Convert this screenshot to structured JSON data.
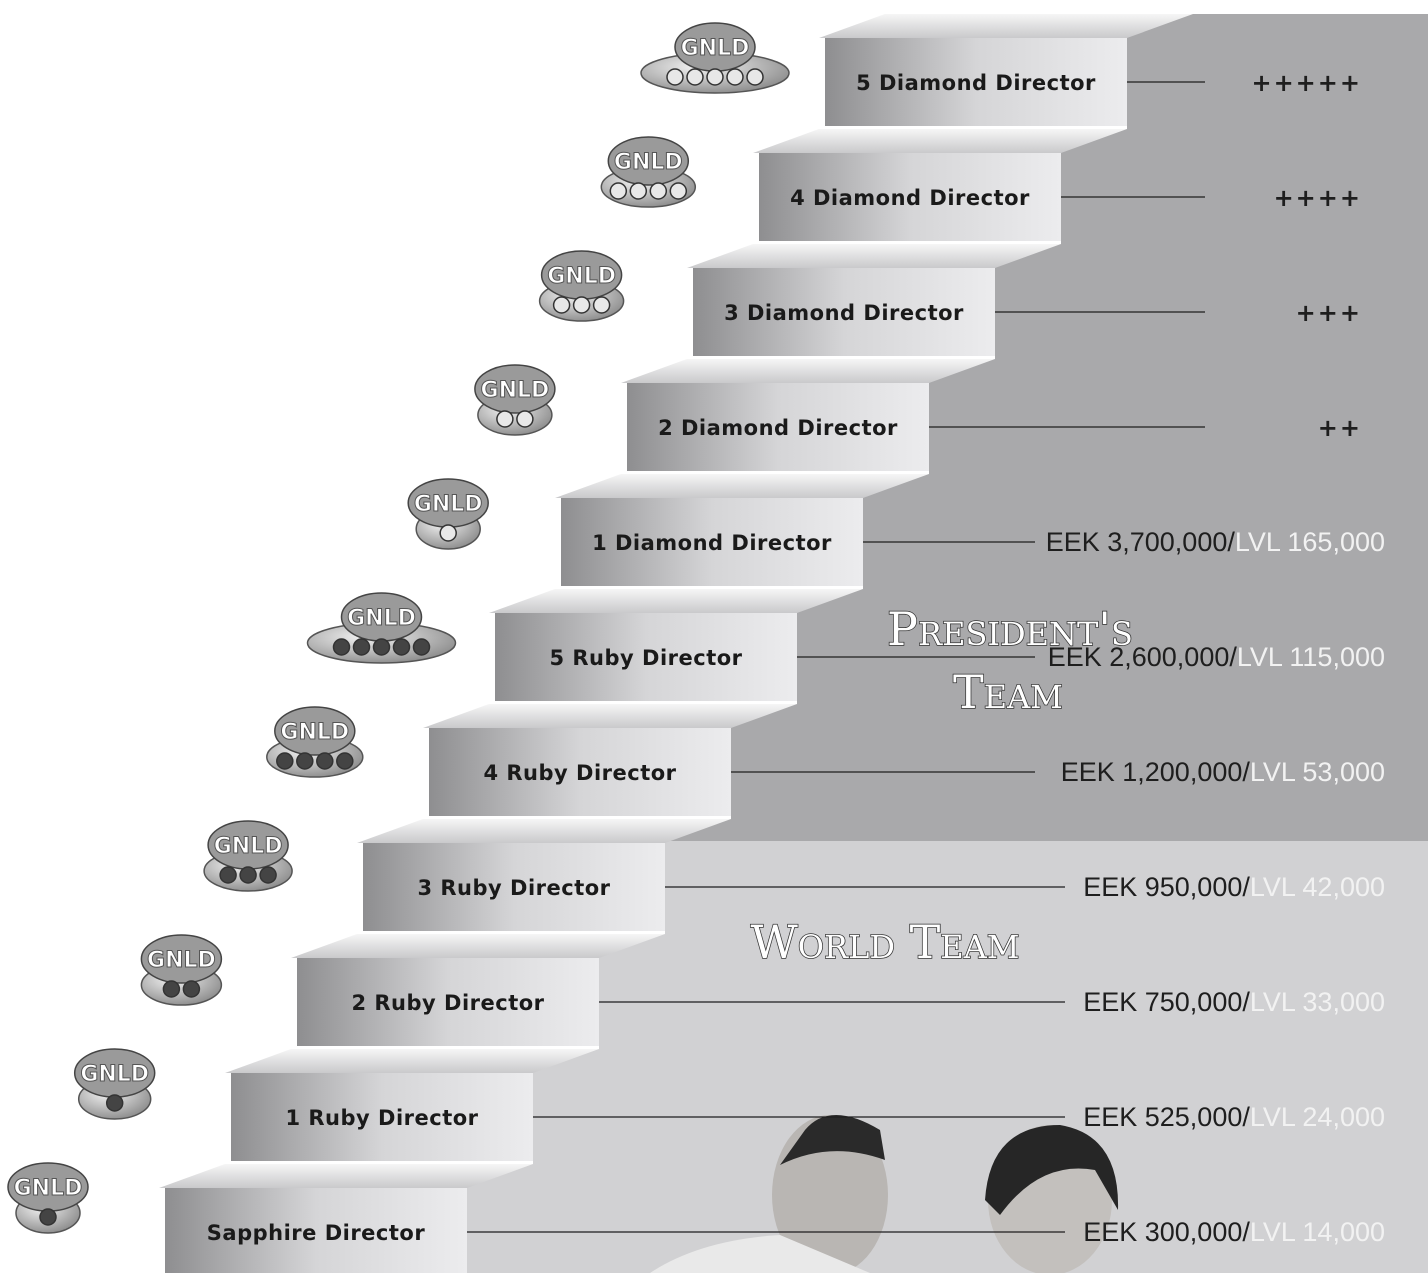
{
  "badge_text": "GNLD",
  "steps": [
    {
      "title": "Sapphire Director",
      "reward_eek": "EEK 300,000/",
      "reward_lvl": "LVL 14,000"
    },
    {
      "title": "1 Ruby Director",
      "reward_eek": "EEK 525,000/",
      "reward_lvl": "LVL 24,000"
    },
    {
      "title": "2 Ruby Director",
      "reward_eek": "EEK 750,000/",
      "reward_lvl": "LVL 33,000"
    },
    {
      "title": "3 Ruby Director",
      "reward_eek": "EEK 950,000/",
      "reward_lvl": "LVL 42,000"
    },
    {
      "title": "4 Ruby Director",
      "reward_eek": "EEK 1,200,000/",
      "reward_lvl": "LVL 53,000"
    },
    {
      "title": "5 Ruby Director",
      "reward_eek": "EEK 2,600,000/",
      "reward_lvl": "LVL 115,000"
    },
    {
      "title": "1 Diamond Director",
      "reward_eek": "EEK 3,700,000/",
      "reward_lvl": "LVL 165,000"
    },
    {
      "title": "2 Diamond Director",
      "plus": "++"
    },
    {
      "title": "3 Diamond Director",
      "plus": "+++"
    },
    {
      "title": "4 Diamond Director",
      "plus": "++++"
    },
    {
      "title": "5 Diamond Director",
      "plus": "+++++"
    }
  ],
  "president_team": [
    "President's",
    "Team"
  ],
  "world_team": "World Team"
}
